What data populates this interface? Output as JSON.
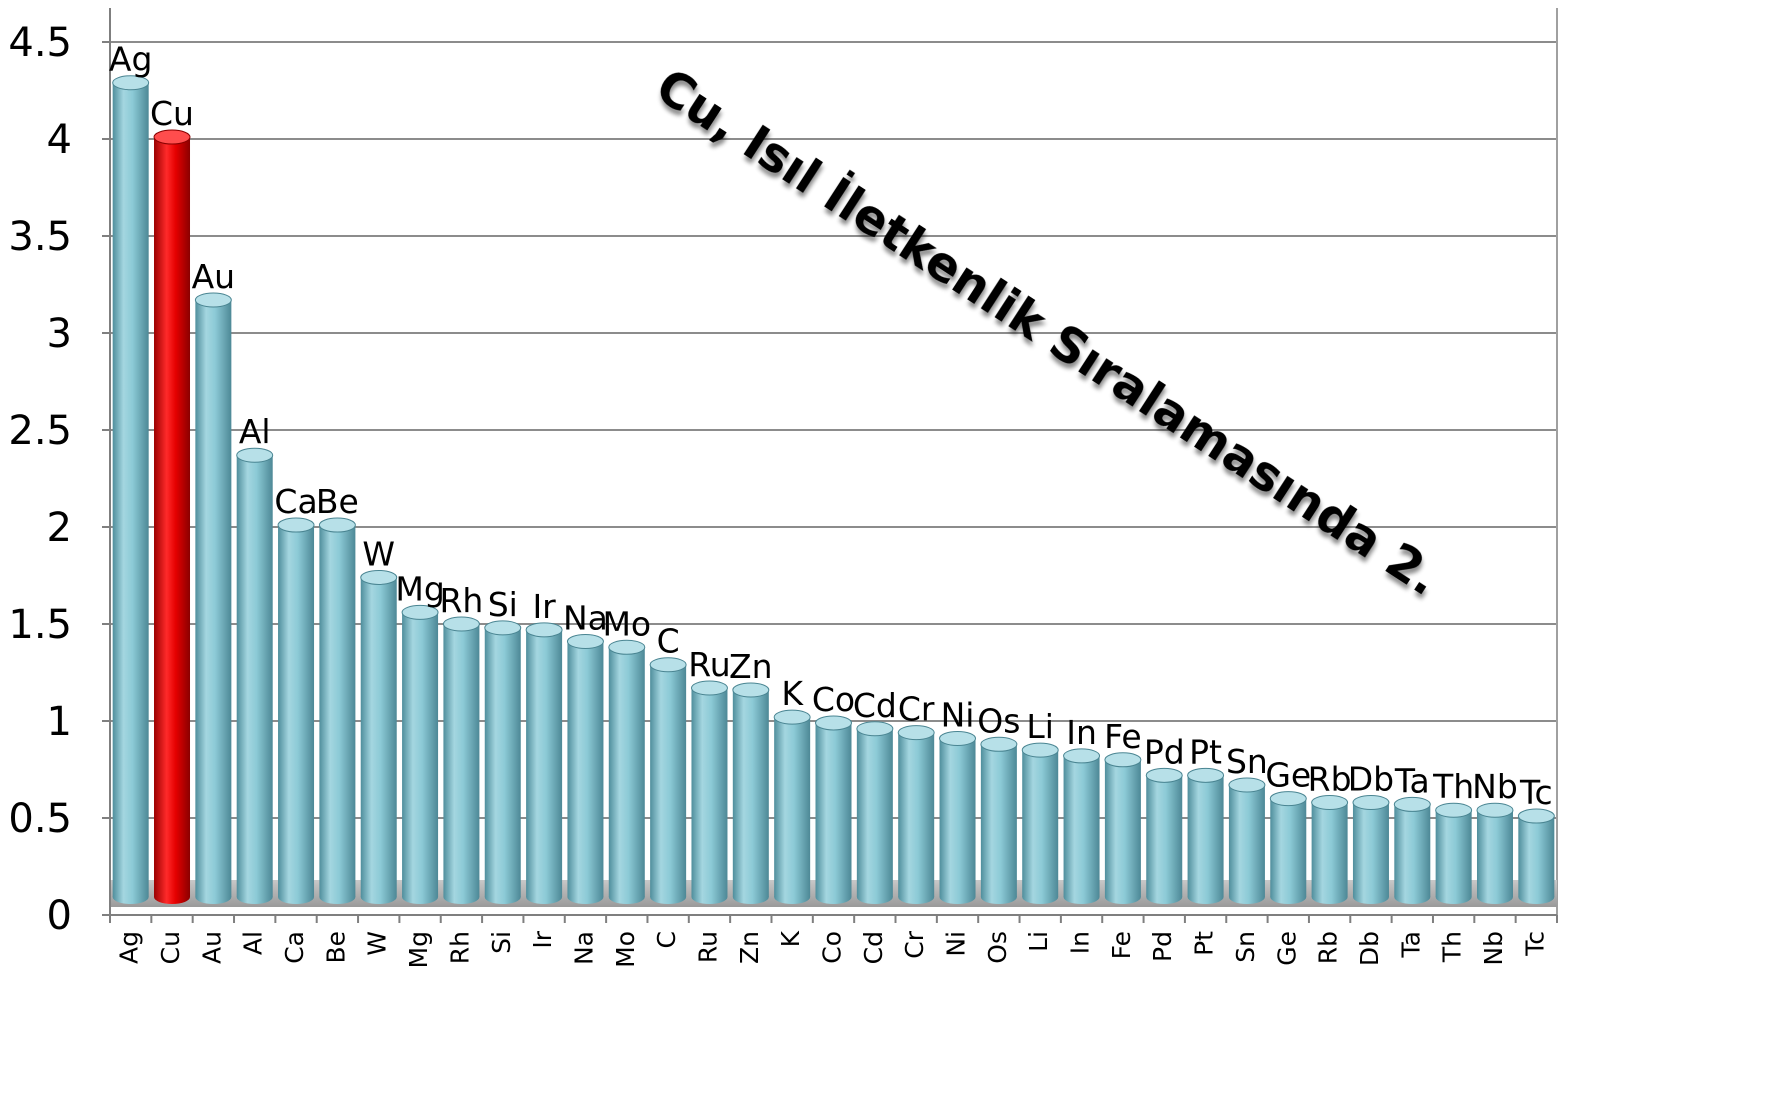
{
  "chart_data": {
    "type": "bar",
    "bar_style": "cylinder",
    "categories": [
      "Ag",
      "Cu",
      "Au",
      "Al",
      "Ca",
      "Be",
      "W",
      "Mg",
      "Rh",
      "Si",
      "Ir",
      "Na",
      "Mo",
      "C",
      "Ru",
      "Zn",
      "K",
      "Co",
      "Cd",
      "Cr",
      "Ni",
      "Os",
      "Li",
      "In",
      "Fe",
      "Pd",
      "Pt",
      "Sn",
      "Ge",
      "Rb",
      "Db",
      "Ta",
      "Th",
      "Nb",
      "Tc"
    ],
    "series": [
      {
        "values": [
          4.29,
          4.01,
          3.17,
          2.37,
          2.01,
          2.01,
          1.74,
          1.56,
          1.5,
          1.48,
          1.47,
          1.41,
          1.38,
          1.29,
          1.17,
          1.16,
          1.02,
          0.99,
          0.96,
          0.94,
          0.91,
          0.88,
          0.85,
          0.82,
          0.8,
          0.72,
          0.72,
          0.67,
          0.6,
          0.58,
          0.58,
          0.57,
          0.54,
          0.54,
          0.51
        ]
      }
    ],
    "data_labels": [
      "Ag",
      "Cu",
      "Au",
      "Al",
      "Ca",
      "Be",
      "W",
      "Mg",
      "Rh",
      "Si",
      "Ir",
      "Na",
      "Mo",
      "C",
      "Ru",
      "Zn",
      "K",
      "Co",
      "Cd",
      "Cr",
      "Ni",
      "Os",
      "Li",
      "In",
      "Fe",
      "Pd",
      "Pt",
      "Sn",
      "Ge",
      "Rb",
      "Db",
      "Ta",
      "Th",
      "Nb",
      "Tc"
    ],
    "highlight": {
      "category": "Cu",
      "color": "#e50000"
    },
    "bar_color": "#8ccad6",
    "y_ticks": [
      "0",
      "0.5",
      "1",
      "1.5",
      "2",
      "2.5",
      "3",
      "3.5",
      "4",
      "4.5"
    ],
    "ylim": [
      0,
      4.5
    ],
    "grid": true,
    "annotation": "Cu, Isıl İletkenlik Sıralamasında 2."
  }
}
